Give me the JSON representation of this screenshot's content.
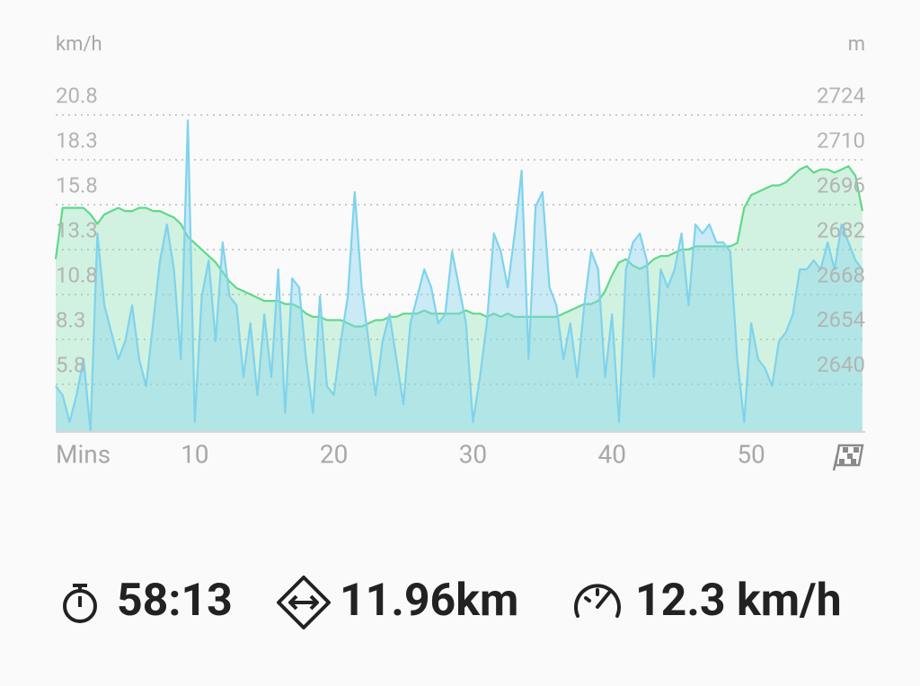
{
  "chart_data": {
    "type": "area",
    "y_label": "km/h",
    "y2_label": "m",
    "x_label": "Mins",
    "xlim": [
      0,
      58.2
    ],
    "xticks": [
      10,
      20,
      30,
      40,
      50
    ],
    "ylim": [
      3.2,
      20.8
    ],
    "yticks": [
      5.8,
      8.3,
      10.8,
      13.3,
      15.8,
      18.3,
      20.8
    ],
    "y2lim": [
      2625.4,
      2724
    ],
    "y2ticks": [
      2640,
      2654,
      2668,
      2682,
      2696,
      2710,
      2724
    ],
    "grid": true,
    "x": [
      0,
      0.5,
      1,
      1.5,
      2,
      2.5,
      3,
      3.5,
      4,
      4.5,
      5,
      5.5,
      6,
      6.5,
      7,
      7.5,
      8,
      8.5,
      9,
      9.5,
      10,
      10.5,
      11,
      11.5,
      12,
      12.5,
      13,
      13.5,
      14,
      14.5,
      15,
      15.5,
      16,
      16.5,
      17,
      17.5,
      18,
      18.5,
      19,
      19.5,
      20,
      20.5,
      21,
      21.5,
      22,
      22.5,
      23,
      23.5,
      24,
      24.5,
      25,
      25.5,
      26,
      26.5,
      27,
      27.5,
      28,
      28.5,
      29,
      29.5,
      30,
      30.5,
      31,
      31.5,
      32,
      32.5,
      33,
      33.5,
      34,
      34.5,
      35,
      35.5,
      36,
      36.5,
      37,
      37.5,
      38,
      38.5,
      39,
      39.5,
      40,
      40.5,
      41,
      41.5,
      42,
      42.5,
      43,
      43.5,
      44,
      44.5,
      45,
      45.5,
      46,
      46.5,
      47,
      47.5,
      48,
      48.5,
      49,
      49.5,
      50,
      50.5,
      51,
      51.5,
      52,
      52.5,
      53,
      53.5,
      54,
      54.5,
      55,
      55.5,
      56,
      56.5,
      57,
      57.5,
      58
    ],
    "series": [
      {
        "color": "#7fd3ec",
        "values": [
          5.7,
          5.2,
          3.7,
          5.2,
          7.2,
          3.2,
          14.2,
          10.2,
          8.7,
          7.2,
          8.2,
          10.2,
          7.2,
          5.7,
          9.2,
          12.7,
          14.7,
          12.2,
          7.2,
          20.5,
          3.7,
          10.7,
          12.7,
          8.2,
          13.7,
          10.7,
          10.2,
          6.2,
          9.2,
          5.2,
          9.7,
          6.2,
          12.2,
          4.2,
          11.7,
          11.2,
          7.2,
          4.2,
          10.7,
          5.7,
          5.2,
          8.2,
          10.7,
          16.5,
          11.2,
          8.2,
          5.2,
          8.2,
          9.7,
          7.2,
          4.7,
          9.2,
          10.7,
          12.2,
          11.2,
          9.2,
          9.7,
          13.2,
          11.2,
          9.2,
          3.7,
          6.2,
          9.2,
          14.2,
          13.2,
          11.2,
          14.2,
          17.7,
          7.2,
          15.7,
          16.5,
          11.2,
          10.2,
          7.2,
          9.2,
          6.2,
          10.2,
          13.2,
          12.2,
          6.2,
          9.7,
          3.7,
          12.2,
          13.7,
          14.2,
          12.7,
          6.2,
          12.2,
          11.2,
          12.2,
          14.2,
          10.2,
          14.7,
          14.2,
          14.7,
          13.7,
          13.7,
          13.2,
          7.2,
          3.7,
          9.2,
          7.2,
          6.7,
          5.7,
          8.2,
          8.7,
          9.7,
          12.2,
          12.2,
          12.7,
          12.2,
          13.7,
          12.2,
          14.7,
          13.7,
          12.7,
          12.2
        ]
      },
      {
        "color": "#5fd98a",
        "axis": "y2",
        "values": [
          2679,
          2695,
          2695,
          2695,
          2695,
          2693,
          2690,
          2693,
          2694,
          2695,
          2694,
          2694,
          2695,
          2695,
          2694,
          2694,
          2693,
          2692,
          2690,
          2686,
          2684,
          2682,
          2680,
          2678,
          2675,
          2672,
          2670,
          2669,
          2668,
          2667,
          2666,
          2666,
          2666,
          2665,
          2665,
          2664,
          2662,
          2661,
          2661,
          2660,
          2660,
          2660,
          2659,
          2658,
          2658,
          2659,
          2660,
          2660,
          2661,
          2661,
          2662,
          2662,
          2662,
          2663,
          2662,
          2662,
          2662,
          2662,
          2662,
          2663,
          2662,
          2662,
          2661,
          2662,
          2661,
          2662,
          2661,
          2661,
          2661,
          2661,
          2661,
          2661,
          2661,
          2662,
          2663,
          2664,
          2665,
          2665,
          2666,
          2669,
          2674,
          2678,
          2679,
          2677,
          2676,
          2677,
          2679,
          2680,
          2680,
          2681,
          2682,
          2682,
          2683,
          2683,
          2683,
          2683,
          2683,
          2683,
          2684,
          2695,
          2699,
          2700,
          2701,
          2702,
          2702,
          2703,
          2705,
          2707,
          2708,
          2706,
          2707,
          2707,
          2706,
          2707,
          2708,
          2705,
          2694
        ]
      }
    ]
  },
  "stats": {
    "duration": "58:13",
    "distance": "11.96km",
    "avg_speed": "12.3 km/h"
  }
}
